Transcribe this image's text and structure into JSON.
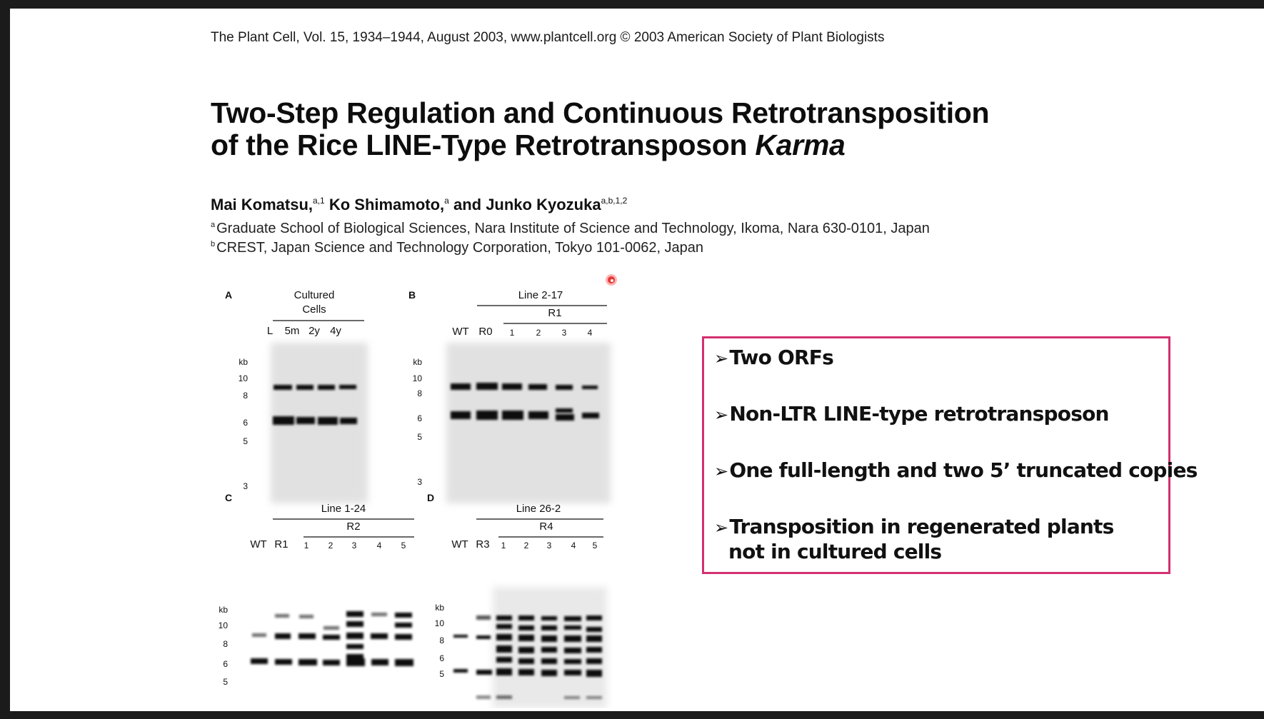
{
  "paper": {
    "journal_line": "The Plant Cell, Vol. 15, 1934–1944, August 2003, www.plantcell.org © 2003 American Society of Plant Biologists",
    "title_line1": "Two-Step Regulation and Continuous Retrotransposition",
    "title_line2_pre": "of the Rice LINE-Type Retrotransposon ",
    "title_line2_italic": "Karma",
    "authors": [
      {
        "name": "Mai Komatsu,",
        "sup": "a,1"
      },
      {
        "name": " Ko Shimamoto,",
        "sup": "a"
      },
      {
        "name": " and Junko Kyozuka",
        "sup": "a,b,1,2"
      }
    ],
    "affiliations": [
      {
        "mark": "a",
        "text": "Graduate School of Biological Sciences, Nara Institute of Science and Technology, Ikoma, Nara 630-0101, Japan"
      },
      {
        "mark": "b",
        "text": "CREST, Japan Science and Technology Corporation, Tokyo 101-0062, Japan"
      }
    ]
  },
  "figure": {
    "panels": {
      "A": {
        "label": "A",
        "header1": "Cultured",
        "header2": "Cells",
        "lanes": [
          "L",
          "5m",
          "2y",
          "4y"
        ],
        "markers": [
          "kb",
          "10",
          "8",
          "6",
          "5",
          "3"
        ]
      },
      "B": {
        "label": "B",
        "header1": "Line 2-17",
        "header2": "R1",
        "lanes": [
          "WT",
          "R0",
          "1",
          "2",
          "3",
          "4"
        ],
        "markers": [
          "kb",
          "10",
          "8",
          "6",
          "5",
          "3"
        ]
      },
      "C": {
        "label": "C",
        "header1": "Line 1-24",
        "header2": "R2",
        "lanes": [
          "WT",
          "R1",
          "1",
          "2",
          "3",
          "4",
          "5"
        ],
        "markers": [
          "kb",
          "10",
          "8",
          "6",
          "5"
        ]
      },
      "D": {
        "label": "D",
        "header1": "Line 26-2",
        "header2": "R4",
        "lanes": [
          "WT",
          "R3",
          "1",
          "2",
          "3",
          "4",
          "5"
        ],
        "markers": [
          "kb",
          "10",
          "8",
          "6",
          "5"
        ]
      }
    }
  },
  "summary_box": {
    "border_color": "#d4306f",
    "bullet_icon": "arrowhead-bullet-icon",
    "bullets": [
      "Two ORFs",
      "Non-LTR LINE-type retrotransposon",
      "One full-length and two 5’ truncated copies",
      "Transposition in regenerated plants"
    ],
    "bullet4_continuation": "not in cultured cells"
  }
}
